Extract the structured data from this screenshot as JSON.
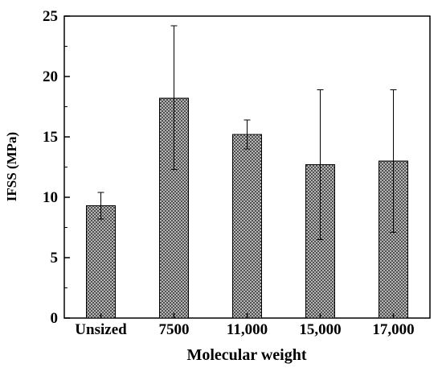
{
  "chart_data": {
    "type": "bar",
    "title": "",
    "xlabel": "Molecular weight",
    "ylabel": "IFSS (MPa)",
    "categories": [
      "Unsized",
      "7500",
      "11,000",
      "15,000",
      "17,000"
    ],
    "values": [
      9.3,
      18.2,
      15.2,
      12.7,
      13.0
    ],
    "error_upper": [
      10.4,
      24.2,
      16.4,
      18.9,
      18.9
    ],
    "error_lower": [
      8.2,
      12.3,
      14.0,
      6.5,
      7.1
    ],
    "ylim": [
      0,
      25
    ],
    "yticks": [
      0,
      5,
      10,
      15,
      20,
      25
    ],
    "grid": false,
    "bar_pattern": "crosshatch",
    "colors": {
      "bar_fill": "#a9a9a9",
      "bar_edge": "#000000",
      "axis": "#000000"
    }
  }
}
